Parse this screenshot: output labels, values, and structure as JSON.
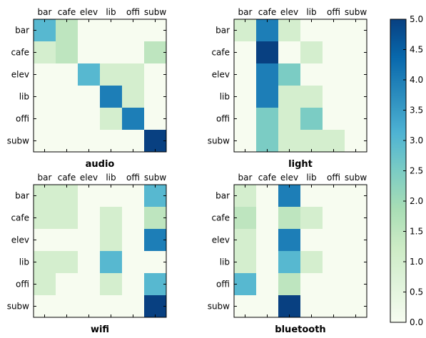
{
  "colormap": {
    "name": "GnBu",
    "stops": [
      [
        0.0,
        "#f7fcf0"
      ],
      [
        0.125,
        "#e0f3db"
      ],
      [
        0.25,
        "#ccebc5"
      ],
      [
        0.375,
        "#a8ddb5"
      ],
      [
        0.5,
        "#7bccc4"
      ],
      [
        0.625,
        "#4eb3d3"
      ],
      [
        0.75,
        "#2b8cbe"
      ],
      [
        0.875,
        "#0868ac"
      ],
      [
        1.0,
        "#084081"
      ]
    ]
  },
  "chart_data": [
    {
      "type": "heatmap",
      "title": "audio",
      "x_tick_labels": [
        "bar",
        "cafe",
        "elev",
        "lib",
        "offi",
        "subw"
      ],
      "y_tick_labels": [
        "bar",
        "cafe",
        "elev",
        "lib",
        "offi",
        "subw"
      ],
      "values": [
        [
          3,
          1.5,
          0,
          0,
          0,
          0
        ],
        [
          1,
          1.5,
          0,
          0,
          0,
          1.5
        ],
        [
          0,
          0,
          3,
          1,
          1,
          0
        ],
        [
          0,
          0,
          0,
          4,
          1,
          0
        ],
        [
          0,
          0,
          0,
          1,
          4,
          0
        ],
        [
          0,
          0,
          0,
          0,
          0,
          5
        ]
      ],
      "vmin": 0,
      "vmax": 5
    },
    {
      "type": "heatmap",
      "title": "light",
      "x_tick_labels": [
        "bar",
        "cafe",
        "elev",
        "lib",
        "offi",
        "subw"
      ],
      "y_tick_labels": [
        "bar",
        "cafe",
        "elev",
        "lib",
        "offi",
        "subw"
      ],
      "values": [
        [
          1,
          4,
          1,
          0,
          0,
          0
        ],
        [
          0,
          5,
          0,
          1,
          0,
          0
        ],
        [
          0,
          4,
          2.5,
          0,
          0,
          0
        ],
        [
          0,
          4,
          1,
          1,
          0,
          0
        ],
        [
          0,
          2.5,
          1,
          2.5,
          0,
          0
        ],
        [
          0,
          2.5,
          1,
          1,
          1,
          0
        ]
      ],
      "vmin": 0,
      "vmax": 5
    },
    {
      "type": "heatmap",
      "title": "wifi",
      "x_tick_labels": [
        "bar",
        "cafe",
        "elev",
        "lib",
        "offi",
        "subw"
      ],
      "y_tick_labels": [
        "bar",
        "cafe",
        "elev",
        "lib",
        "offi",
        "subw"
      ],
      "values": [
        [
          1,
          1,
          0,
          0,
          0,
          3
        ],
        [
          1,
          1,
          0,
          1,
          0,
          1.5
        ],
        [
          0,
          0,
          0,
          1,
          0,
          4
        ],
        [
          1,
          1,
          0,
          3,
          0,
          0
        ],
        [
          1,
          0,
          0,
          1,
          0,
          3
        ],
        [
          0,
          0,
          0,
          0,
          0,
          5
        ]
      ],
      "vmin": 0,
      "vmax": 5
    },
    {
      "type": "heatmap",
      "title": "bluetooth",
      "x_tick_labels": [
        "bar",
        "cafe",
        "elev",
        "lib",
        "offi",
        "subw"
      ],
      "y_tick_labels": [
        "bar",
        "cafe",
        "elev",
        "lib",
        "offi",
        "subw"
      ],
      "values": [
        [
          1,
          0,
          4,
          0,
          0,
          0
        ],
        [
          1.5,
          0,
          1.5,
          1,
          0,
          0
        ],
        [
          1,
          0,
          4,
          0,
          0,
          0
        ],
        [
          1,
          0,
          3,
          1,
          0,
          0
        ],
        [
          3,
          0,
          1.5,
          0,
          0,
          0
        ],
        [
          0,
          0,
          5,
          0,
          0,
          0
        ]
      ],
      "vmin": 0,
      "vmax": 5
    }
  ],
  "colorbar": {
    "tick_labels": [
      "0.0",
      "0.5",
      "1.0",
      "1.5",
      "2.0",
      "2.5",
      "3.0",
      "3.5",
      "4.0",
      "4.5",
      "5.0"
    ],
    "ticks": [
      0,
      0.5,
      1,
      1.5,
      2,
      2.5,
      3,
      3.5,
      4,
      4.5,
      5
    ]
  }
}
